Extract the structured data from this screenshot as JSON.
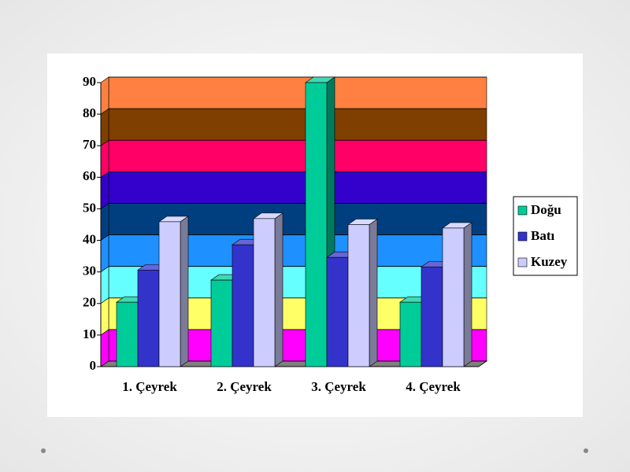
{
  "chart_data": {
    "type": "bar3d",
    "categories": [
      "1. Çeyrek",
      "2. Çeyrek",
      "3. Çeyrek",
      "4. Çeyrek"
    ],
    "series": [
      {
        "name": "Doğu",
        "color": "#00cc99",
        "values": [
          20.4,
          27.4,
          90,
          20.4
        ]
      },
      {
        "name": "Batı",
        "color": "#3333cc",
        "values": [
          30.6,
          38.6,
          34.6,
          31.6
        ]
      },
      {
        "name": "Kuzey",
        "color": "#ccccff",
        "values": [
          45.9,
          46.9,
          45,
          43.9
        ]
      }
    ],
    "ylim": [
      0,
      90
    ],
    "yticks": [
      0,
      10,
      20,
      30,
      40,
      50,
      60,
      70,
      80,
      90
    ],
    "grid": true,
    "legend": "right",
    "band_colors": [
      "#ff00ff",
      "#ffff66",
      "#66ffff",
      "#1e90ff",
      "#003f7f",
      "#3300cc",
      "#ff0066",
      "#7f3f00",
      "#ff8040"
    ]
  }
}
